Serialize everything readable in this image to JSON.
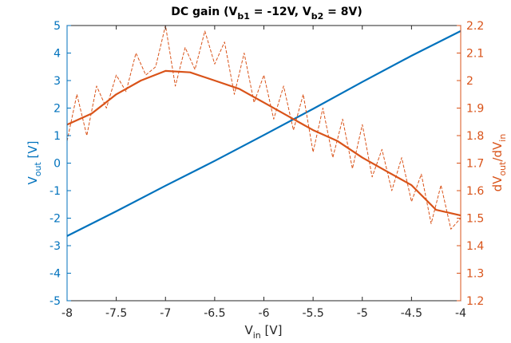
{
  "chart_data": {
    "type": "line",
    "title_parts": {
      "prefix": "DC gain (V",
      "sub1": "b1",
      "mid": " = -12V, V",
      "sub2": "b2",
      "suffix": " = 8V)"
    },
    "xlabel_parts": {
      "base": "V",
      "sub": "in",
      "suffix": " [V]"
    },
    "ylabel_left_parts": {
      "base": "V",
      "sub": "out",
      "suffix": " [V]"
    },
    "ylabel_right_parts": {
      "a": "dV",
      "sub1": "out",
      "b": "/dV",
      "sub2": "in"
    },
    "xlim": [
      -8,
      -4
    ],
    "ylim_left": [
      -5,
      5
    ],
    "ylim_right": [
      1.2,
      2.2
    ],
    "x_ticks": [
      -8,
      -7.5,
      -7,
      -6.5,
      -6,
      -5.5,
      -5,
      -4.5,
      -4
    ],
    "y_left_ticks": [
      -5,
      -4,
      -3,
      -2,
      -1,
      0,
      1,
      2,
      3,
      4,
      5
    ],
    "y_right_ticks": [
      1.2,
      1.3,
      1.4,
      1.5,
      1.6,
      1.7,
      1.8,
      1.9,
      2.0,
      2.1,
      2.2
    ],
    "x_tick_labels": [
      "-8",
      "-7.5",
      "-7",
      "-6.5",
      "-6",
      "-5.5",
      "-5",
      "-4.5",
      "-4"
    ],
    "y_left_tick_labels": [
      "-5",
      "-4",
      "-3",
      "-2",
      "-1",
      "0",
      "1",
      "2",
      "3",
      "4",
      "5"
    ],
    "y_right_tick_labels": [
      "1.2",
      "1.3",
      "1.4",
      "1.5",
      "1.6",
      "1.7",
      "1.8",
      "1.9",
      "2",
      "2.1",
      "2.2"
    ],
    "grid": false,
    "series": [
      {
        "axis": "left",
        "style": "solid",
        "color": "#0072BD",
        "x": [
          -8.0,
          -7.5,
          -7.0,
          -6.5,
          -6.0,
          -5.5,
          -5.0,
          -4.5,
          -4.0
        ],
        "y": [
          -2.65,
          -1.75,
          -0.82,
          0.08,
          1.02,
          1.97,
          2.95,
          3.9,
          4.8
        ]
      },
      {
        "axis": "right",
        "style": "solid",
        "color": "#D95319",
        "x": [
          -8.0,
          -7.75,
          -7.5,
          -7.25,
          -7.0,
          -6.75,
          -6.5,
          -6.25,
          -6.0,
          -5.75,
          -5.5,
          -5.25,
          -5.0,
          -4.75,
          -4.5,
          -4.25,
          -4.0
        ],
        "y": [
          1.84,
          1.88,
          1.95,
          2.0,
          2.035,
          2.03,
          2.0,
          1.97,
          1.92,
          1.87,
          1.82,
          1.78,
          1.72,
          1.67,
          1.62,
          1.53,
          1.51
        ]
      },
      {
        "axis": "right",
        "style": "dashed",
        "color": "#D95319",
        "x": [
          -8.0,
          -7.9,
          -7.8,
          -7.7,
          -7.6,
          -7.5,
          -7.4,
          -7.3,
          -7.2,
          -7.1,
          -7.0,
          -6.9,
          -6.8,
          -6.7,
          -6.6,
          -6.5,
          -6.4,
          -6.3,
          -6.2,
          -6.1,
          -6.0,
          -5.9,
          -5.8,
          -5.7,
          -5.6,
          -5.5,
          -5.4,
          -5.3,
          -5.2,
          -5.1,
          -5.0,
          -4.9,
          -4.8,
          -4.7,
          -4.6,
          -4.5,
          -4.4,
          -4.3,
          -4.2,
          -4.1,
          -4.0
        ],
        "y": [
          1.78,
          1.95,
          1.8,
          1.98,
          1.9,
          2.02,
          1.96,
          2.1,
          2.02,
          2.05,
          2.2,
          1.98,
          2.12,
          2.04,
          2.18,
          2.06,
          2.14,
          1.95,
          2.1,
          1.92,
          2.02,
          1.86,
          1.98,
          1.82,
          1.95,
          1.74,
          1.9,
          1.72,
          1.86,
          1.68,
          1.84,
          1.65,
          1.75,
          1.6,
          1.72,
          1.56,
          1.66,
          1.48,
          1.62,
          1.46,
          1.5
        ]
      }
    ]
  }
}
